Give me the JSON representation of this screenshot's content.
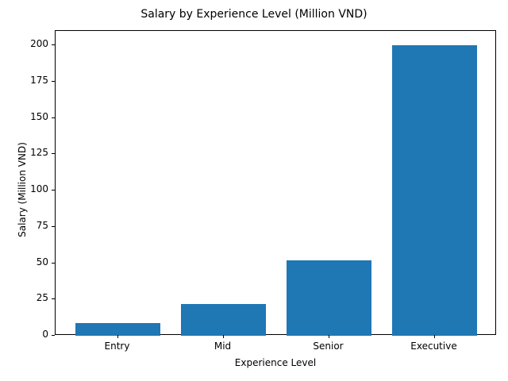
{
  "chart_data": {
    "type": "bar",
    "title": "Salary by Experience Level (Million VND)",
    "xlabel": "Experience Level",
    "ylabel": "Salary (Million VND)",
    "categories": [
      "Entry",
      "Mid",
      "Senior",
      "Executive"
    ],
    "values": [
      9,
      22,
      52,
      200
    ],
    "ylim": [
      0,
      210
    ],
    "yticks": [
      0,
      25,
      50,
      75,
      100,
      125,
      150,
      175,
      200
    ],
    "bar_color": "#1f77b4",
    "grid": false,
    "legend": null
  }
}
